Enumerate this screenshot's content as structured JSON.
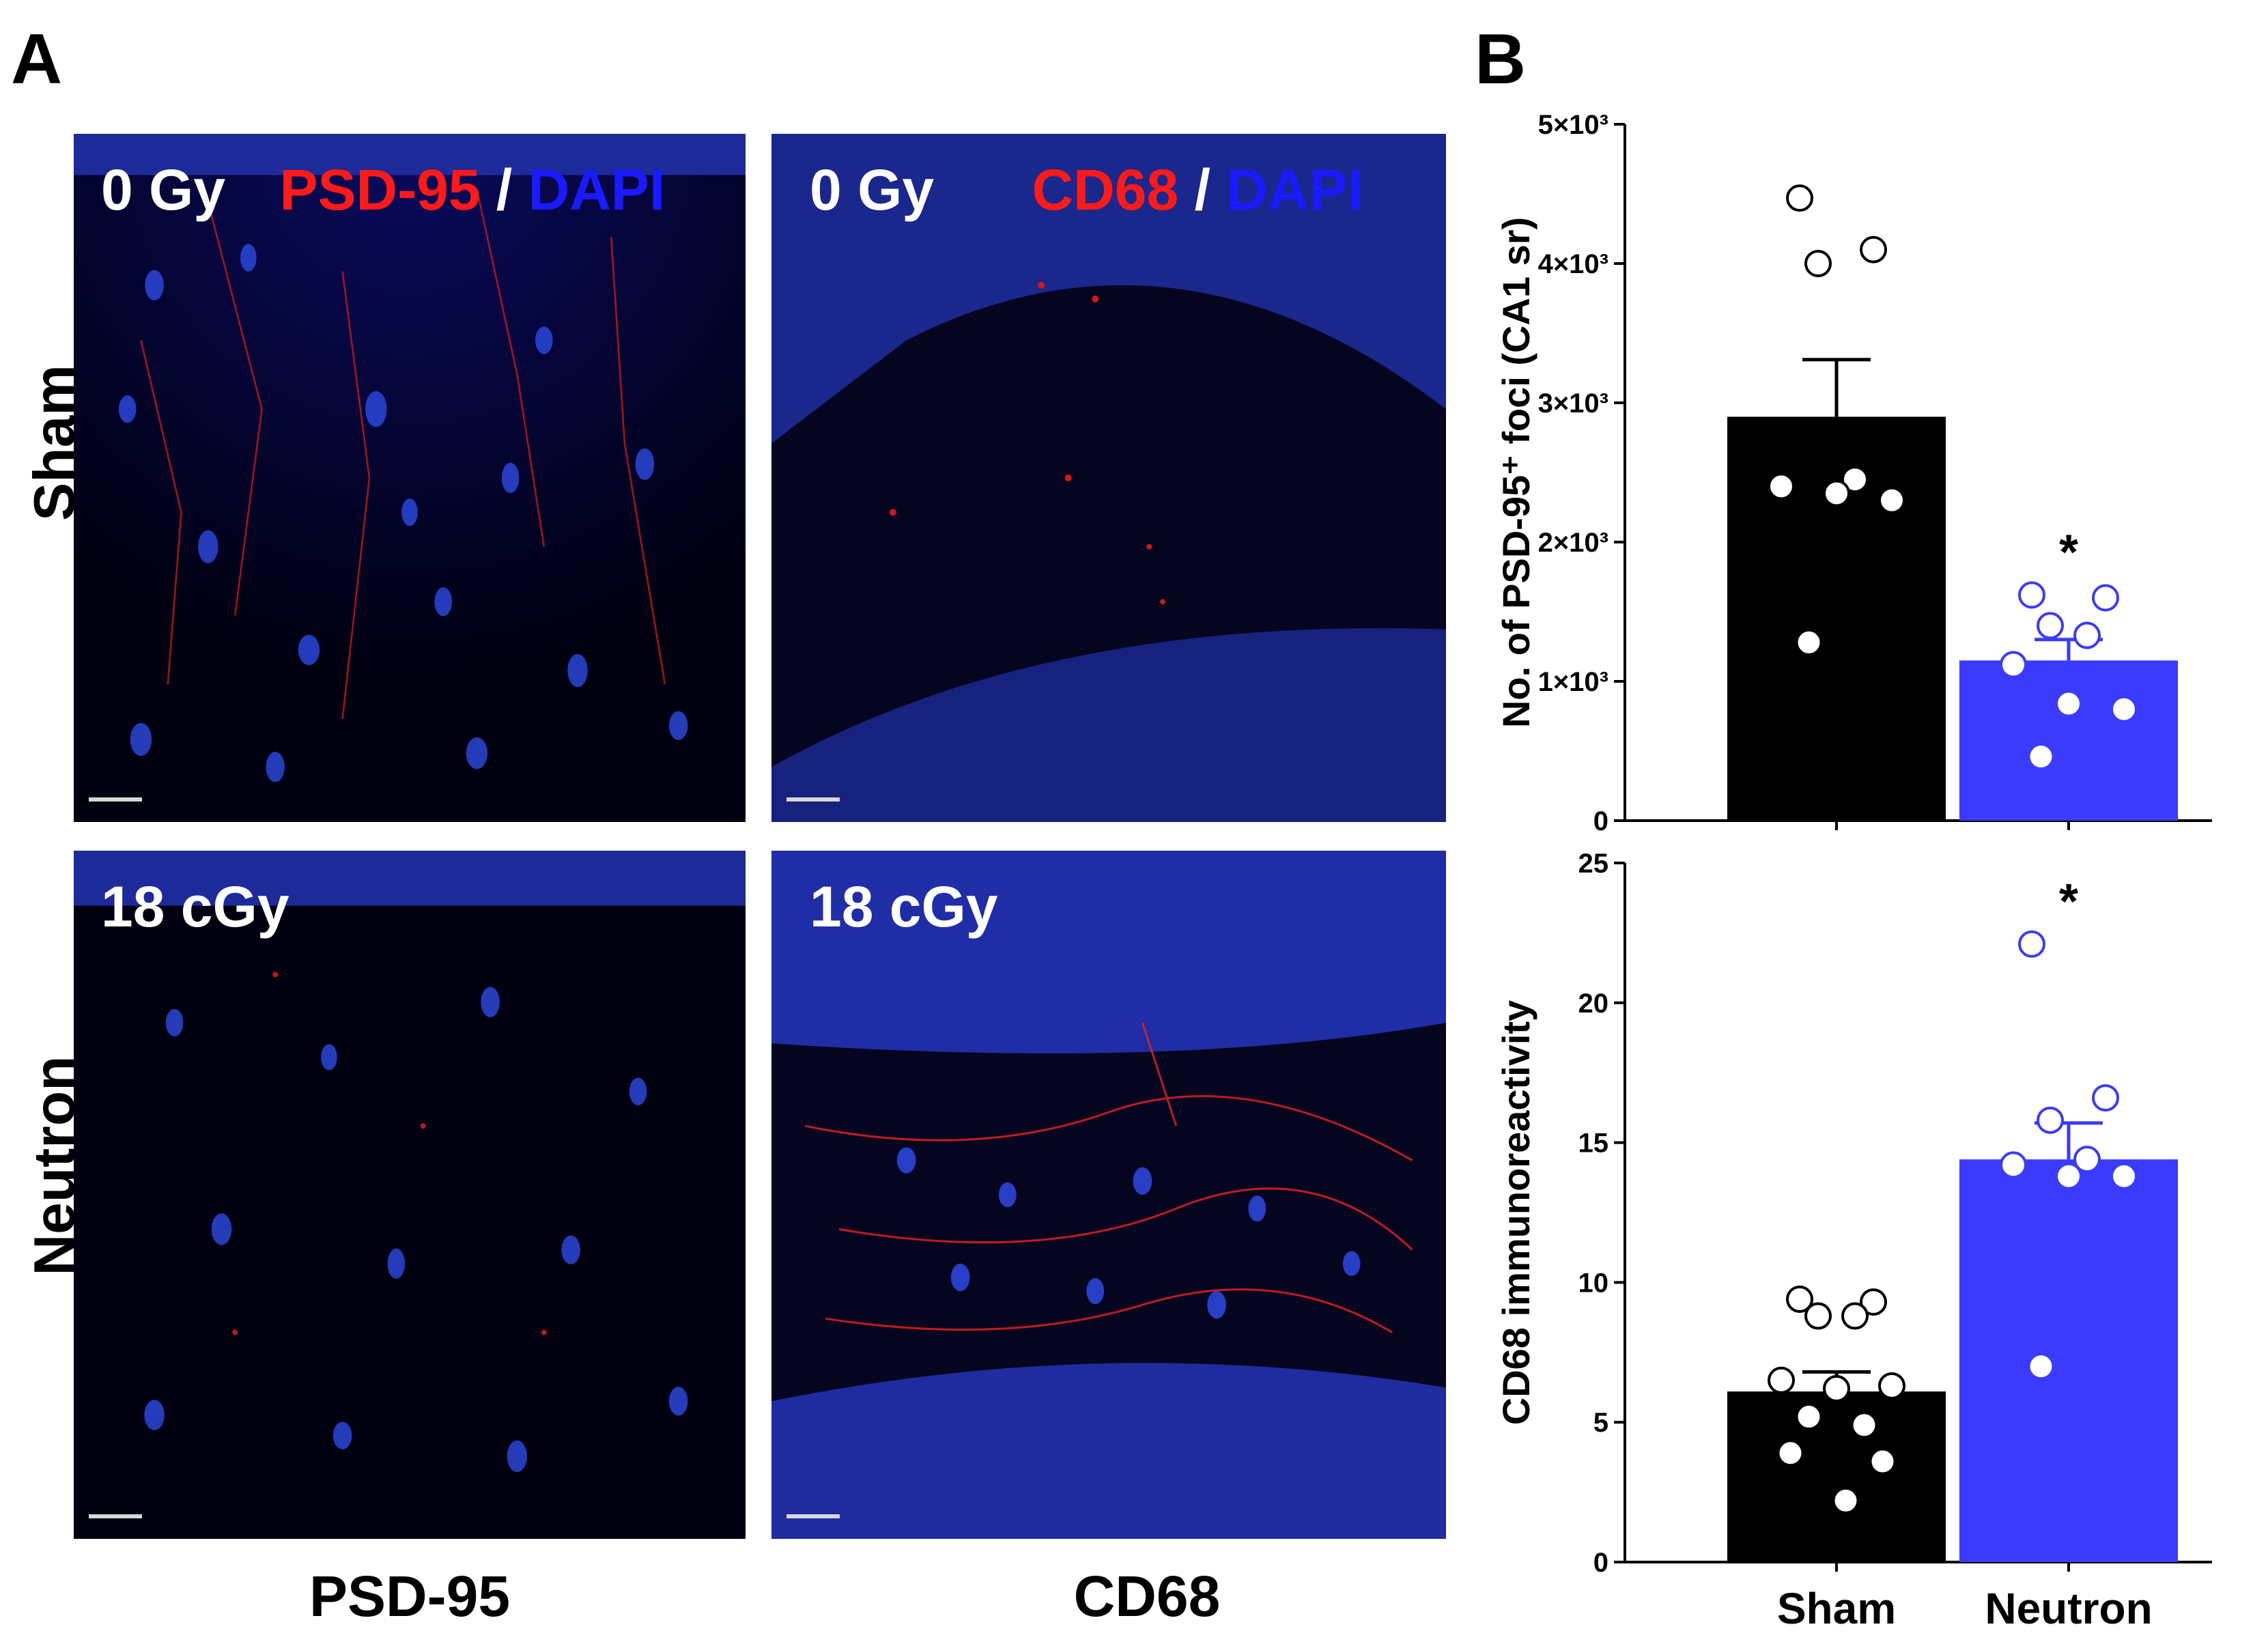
{
  "panel_a": {
    "letter": "A",
    "rows": [
      "Sham",
      "Neutron"
    ],
    "columns": [
      "PSD-95",
      "CD68"
    ],
    "images": [
      {
        "dose": "0 Gy",
        "marker": "PSD-95",
        "separator": "/",
        "counterstain": "DAPI"
      },
      {
        "dose": "0 Gy",
        "marker": "CD68",
        "separator": "/",
        "counterstain": "DAPI"
      },
      {
        "dose": "18 cGy",
        "marker": "",
        "separator": "",
        "counterstain": ""
      },
      {
        "dose": "18 cGy",
        "marker": "",
        "separator": "",
        "counterstain": ""
      }
    ],
    "colors": {
      "marker": "#ff1a1a",
      "dapi": "#1a1aff",
      "background": "#000000"
    }
  },
  "panel_b": {
    "letter": "B"
  },
  "chart_data": [
    {
      "type": "bar",
      "title": "",
      "xlabel": "",
      "ylabel": "No. of PSD-95⁺ foci (CA1 sr)",
      "ylim": [
        0,
        5000
      ],
      "yticks": [
        0,
        1000,
        2000,
        3000,
        4000,
        5000
      ],
      "ytick_labels": [
        "0",
        "1×10³",
        "2×10³",
        "3×10³",
        "4×10³",
        "5×10³"
      ],
      "categories": [
        "Sham",
        "Neutron"
      ],
      "values": [
        2900,
        1150
      ],
      "sem": [
        410,
        150
      ],
      "bar_colors": [
        "#000000",
        "#3b3bff"
      ],
      "points": [
        [
          4470,
          4100,
          4000,
          2450,
          2400,
          2300,
          2350,
          1280
        ],
        [
          1620,
          1600,
          1400,
          1330,
          1120,
          800,
          840,
          460
        ]
      ],
      "significance": [
        "",
        "*"
      ]
    },
    {
      "type": "bar",
      "title": "",
      "xlabel": "",
      "ylabel": "CD68 immunoreactivity",
      "ylim": [
        0,
        25
      ],
      "yticks": [
        0,
        5,
        10,
        15,
        20,
        25
      ],
      "ytick_labels": [
        "0",
        "5",
        "10",
        "15",
        "20",
        "25"
      ],
      "categories": [
        "Sham",
        "Neutron"
      ],
      "values": [
        6.1,
        14.4
      ],
      "sem": [
        0.7,
        1.3
      ],
      "bar_colors": [
        "#000000",
        "#3b3bff"
      ],
      "points": [
        [
          9.4,
          9.3,
          8.8,
          8.8,
          6.5,
          6.3,
          6.2,
          5.2,
          4.9,
          3.9,
          3.6,
          2.2
        ],
        [
          22.1,
          16.6,
          15.8,
          14.4,
          14.2,
          13.8,
          13.8,
          7.0
        ]
      ],
      "significance": [
        "",
        "*"
      ]
    }
  ]
}
